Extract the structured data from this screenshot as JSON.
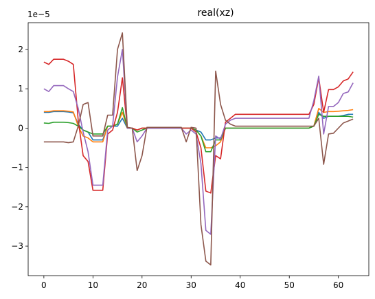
{
  "chart_data": {
    "type": "line",
    "title": "real(xz)",
    "xlabel": "",
    "ylabel": "",
    "offset_text": "1e−5",
    "y_scale_exponent": -5,
    "xlim": [
      -3.2,
      66.2
    ],
    "ylim": [
      -3.75,
      2.68
    ],
    "x_ticks": [
      0,
      10,
      20,
      30,
      40,
      50,
      60
    ],
    "y_ticks": [
      -3,
      -2,
      -1,
      0,
      1,
      2
    ],
    "y_tick_labels": [
      "−3",
      "−2",
      "−1",
      "0",
      "1",
      "2"
    ],
    "grid": false,
    "legend": false,
    "x": [
      0,
      1,
      2,
      3,
      4,
      5,
      6,
      7,
      8,
      9,
      10,
      11,
      12,
      13,
      14,
      15,
      16,
      17,
      18,
      19,
      20,
      21,
      22,
      23,
      24,
      25,
      26,
      27,
      28,
      29,
      30,
      31,
      32,
      33,
      34,
      35,
      36,
      37,
      38,
      39,
      40,
      41,
      42,
      43,
      44,
      45,
      46,
      47,
      48,
      49,
      50,
      51,
      52,
      53,
      54,
      55,
      56,
      57,
      58,
      59,
      60,
      61,
      62,
      63
    ],
    "series": [
      {
        "color": "#1f77b4",
        "values": [
          0.4,
          0.4,
          0.42,
          0.42,
          0.42,
          0.41,
          0.39,
          0.1,
          -0.05,
          -0.1,
          -0.3,
          -0.3,
          -0.3,
          0.05,
          0.05,
          0.05,
          0.25,
          0.0,
          0.0,
          -0.05,
          0.0,
          0.0,
          0.0,
          0.0,
          0.0,
          0.0,
          0.0,
          0.0,
          0.0,
          0.0,
          0.0,
          -0.05,
          -0.1,
          -0.3,
          -0.3,
          -0.25,
          -0.25,
          0.0,
          0.0,
          0.0,
          0.0,
          0.0,
          0.0,
          0.0,
          0.0,
          0.0,
          0.0,
          0.0,
          0.0,
          0.0,
          0.0,
          0.0,
          0.0,
          0.0,
          0.0,
          0.05,
          0.4,
          0.25,
          0.3,
          0.3,
          0.3,
          0.32,
          0.35,
          0.35
        ]
      },
      {
        "color": "#ff7f0e",
        "values": [
          0.42,
          0.42,
          0.44,
          0.44,
          0.44,
          0.43,
          0.41,
          0.05,
          -0.2,
          -0.25,
          -0.35,
          -0.35,
          -0.35,
          0.05,
          0.05,
          0.1,
          0.4,
          0.0,
          0.0,
          -0.05,
          0.0,
          0.0,
          0.0,
          0.0,
          0.0,
          0.0,
          0.0,
          0.0,
          0.0,
          0.0,
          0.0,
          -0.05,
          -0.2,
          -0.5,
          -0.5,
          -0.45,
          -0.35,
          0.0,
          0.0,
          0.0,
          0.0,
          0.0,
          0.0,
          0.0,
          0.0,
          0.0,
          0.0,
          0.0,
          0.0,
          0.0,
          0.0,
          0.0,
          0.0,
          0.0,
          0.0,
          0.05,
          0.5,
          0.4,
          0.42,
          0.42,
          0.43,
          0.44,
          0.45,
          0.47
        ]
      },
      {
        "color": "#2ca02c",
        "values": [
          0.13,
          0.12,
          0.15,
          0.15,
          0.15,
          0.14,
          0.12,
          0.05,
          -0.05,
          -0.1,
          -0.15,
          -0.15,
          -0.15,
          0.05,
          0.05,
          0.1,
          0.52,
          0.0,
          0.0,
          -0.1,
          -0.05,
          0.0,
          0.0,
          0.0,
          0.0,
          0.0,
          0.0,
          0.0,
          0.0,
          0.0,
          0.0,
          -0.05,
          -0.2,
          -0.6,
          -0.6,
          -0.3,
          -0.3,
          0.0,
          0.0,
          0.0,
          0.0,
          0.0,
          0.0,
          0.0,
          0.0,
          0.0,
          0.0,
          0.0,
          0.0,
          0.0,
          0.0,
          0.0,
          0.0,
          0.0,
          0.0,
          0.05,
          0.35,
          0.3,
          0.3,
          0.3,
          0.3,
          0.3,
          0.3,
          0.28
        ]
      },
      {
        "color": "#d62728",
        "values": [
          1.68,
          1.62,
          1.75,
          1.75,
          1.75,
          1.7,
          1.62,
          0.2,
          -0.7,
          -0.85,
          -1.58,
          -1.58,
          -1.58,
          -0.15,
          -0.05,
          0.4,
          1.28,
          0.0,
          0.0,
          -0.05,
          0.0,
          0.0,
          0.0,
          0.0,
          0.0,
          0.0,
          0.0,
          0.0,
          0.0,
          0.0,
          0.0,
          -0.1,
          -0.5,
          -1.6,
          -1.65,
          -0.7,
          -0.78,
          0.15,
          0.25,
          0.35,
          0.35,
          0.35,
          0.35,
          0.35,
          0.35,
          0.35,
          0.35,
          0.35,
          0.35,
          0.35,
          0.35,
          0.35,
          0.35,
          0.35,
          0.35,
          0.6,
          1.28,
          0.4,
          0.98,
          0.98,
          1.05,
          1.2,
          1.25,
          1.43
        ]
      },
      {
        "color": "#9467bd",
        "values": [
          1.0,
          0.93,
          1.08,
          1.08,
          1.08,
          1.0,
          0.93,
          0.5,
          -0.1,
          -0.6,
          -1.45,
          -1.45,
          -1.45,
          -0.05,
          0.05,
          1.3,
          2.0,
          0.0,
          0.0,
          -0.35,
          -0.2,
          0.0,
          0.0,
          0.0,
          0.0,
          0.0,
          0.0,
          0.0,
          0.0,
          -0.15,
          -0.05,
          -0.15,
          -0.9,
          -2.6,
          -2.7,
          -0.2,
          -0.28,
          0.1,
          0.2,
          0.25,
          0.25,
          0.25,
          0.25,
          0.25,
          0.25,
          0.25,
          0.25,
          0.25,
          0.25,
          0.25,
          0.25,
          0.25,
          0.25,
          0.25,
          0.25,
          0.7,
          1.32,
          -0.15,
          0.55,
          0.55,
          0.65,
          0.88,
          0.92,
          1.15
        ]
      },
      {
        "color": "#8c564b",
        "values": [
          -0.35,
          -0.35,
          -0.35,
          -0.35,
          -0.35,
          -0.37,
          -0.35,
          0.05,
          0.6,
          0.65,
          -0.2,
          -0.2,
          -0.2,
          0.33,
          0.33,
          2.0,
          2.42,
          0.02,
          0.0,
          -1.08,
          -0.7,
          0.02,
          0.02,
          0.02,
          0.02,
          0.02,
          0.02,
          0.02,
          0.02,
          -0.35,
          0.02,
          0.0,
          -2.45,
          -3.38,
          -3.48,
          1.45,
          0.6,
          0.2,
          0.1,
          0.05,
          0.05,
          0.05,
          0.05,
          0.05,
          0.05,
          0.05,
          0.05,
          0.05,
          0.05,
          0.05,
          0.05,
          0.05,
          0.05,
          0.05,
          0.05,
          0.05,
          0.25,
          -0.92,
          -0.15,
          -0.13,
          0.0,
          0.13,
          0.18,
          0.23
        ]
      }
    ]
  }
}
